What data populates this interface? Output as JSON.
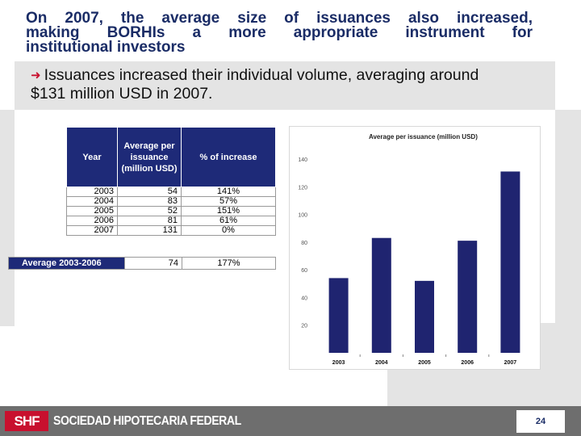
{
  "title_lines": [
    "On 2007, the average size of issuances also increased,",
    "making BORHIs a more appropriate instrument for",
    "institutional investors"
  ],
  "callout": {
    "icon": "arrow-right-icon",
    "lines": [
      "Issuances increased their individual volume, averaging around",
      "$131 million USD in 2007."
    ]
  },
  "table": {
    "headers": [
      "Year",
      "Average per issuance (million USD)",
      "% of increase"
    ],
    "rows": [
      [
        "2003",
        "54",
        "141%"
      ],
      [
        "2004",
        "83",
        "57%"
      ],
      [
        "2005",
        "52",
        "151%"
      ],
      [
        "2006",
        "81",
        "61%"
      ],
      [
        "2007",
        "131",
        "0%"
      ]
    ],
    "average_row": {
      "label": "Average 2003-2006",
      "value": "74",
      "pct": "177%"
    }
  },
  "chart_data": {
    "type": "bar",
    "title": "Average per issuance (million USD)",
    "categories": [
      "2003",
      "2004",
      "2005",
      "2006",
      "2007"
    ],
    "values": [
      54,
      83,
      52,
      81,
      131
    ],
    "ylim": [
      0,
      140
    ],
    "yticks": [
      0,
      20,
      40,
      60,
      80,
      100,
      120,
      140
    ],
    "ytick_labels": [
      "",
      "20",
      "40",
      "60",
      "80",
      "100",
      "120",
      "140"
    ],
    "grid": false,
    "bar_color": "#1f2470"
  },
  "footer": {
    "logo": "SHF",
    "brand": "SOCIEDAD HIPOTECARIA FEDERAL",
    "page": "24"
  }
}
